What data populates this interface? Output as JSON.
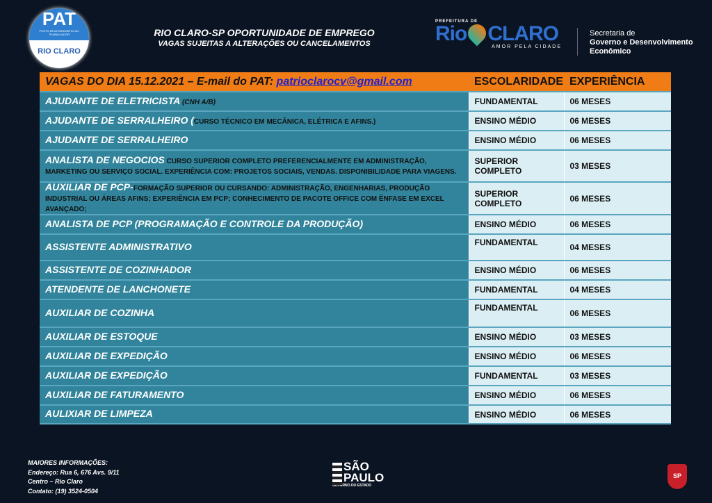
{
  "header": {
    "pat_logo": {
      "title": "PAT",
      "subtitle": "POSTO DE ATENDIMENTO AO TRABALHADOR",
      "city": "RIO CLARO"
    },
    "title": "RIO CLARO-SP OPORTUNIDADE DE EMPREGO",
    "subtitle": "VAGAS SUJEITAS A ALTERAÇÕES OU CANCELAMENTOS",
    "city_logo": {
      "prefix": "PREFEITURA DE",
      "name_left": "Rio",
      "name_right": "CLARO",
      "slogan": "AMOR PELA CIDADE"
    },
    "secretaria": {
      "line1": "Secretaria de",
      "line2": "Governo e Desenvolvimento",
      "line3": "Econômico"
    }
  },
  "table": {
    "title_prefix": "VAGAS DO DIA 15.12.2021 – E-mail do PAT: ",
    "email": "patrioclarocv@gmail.com",
    "col_escolaridade": "ESCOLARIDADE",
    "col_experiencia": "EXPERIÊNCIA",
    "rows": [
      {
        "cargo": "AJUDANTE DE ELETRICISTA",
        "detalhe": " (CNH A/B)",
        "escolaridade": "FUNDAMENTAL",
        "experiencia": "06 MESES"
      },
      {
        "cargo": "AJUDANTE DE SERRALHEIRO (",
        "detalhe": "CURSO TÉCNICO EM MECÂNICA, ELÉTRICA E AFINS.)",
        "escolaridade": "ENSINO MÉDIO",
        "experiencia": "06 MESES"
      },
      {
        "cargo": "AJUDANTE DE SERRALHEIRO",
        "detalhe": "",
        "escolaridade": "ENSINO MÉDIO",
        "experiencia": "06 MESES"
      },
      {
        "cargo": "ANALISTA DE NEGOCIOS",
        "detalhe": " CURSO SUPERIOR COMPLETO PREFERENCIALMENTE EM ADMINISTRAÇÃO, MARKETING OU SERVIÇO SOCIAL. EXPERIÊNCIA COM: PROJETOS SOCIAIS, VENDAS. DISPONIBILIDADE PARA VIAGENS.",
        "escolaridade": "SUPERIOR COMPLETO",
        "experiencia": "03 MESES"
      },
      {
        "cargo": "AUXILIAR DE PCP-",
        "detalhe": "FORMAÇÃO SUPERIOR OU CURSANDO: ADMINISTRAÇÃO, ENGENHARIAS, PRODUÇÃO INDUSTRIAL OU ÁREAS AFINS; EXPERIÊNCIA EM PCP; CONHECIMENTO DE PACOTE OFFICE COM ÊNFASE EM EXCEL AVANÇADO;",
        "escolaridade": "SUPERIOR COMPLETO",
        "experiencia": "06 MESES"
      },
      {
        "cargo": "ANALISTA DE PCP (PROGRAMAÇÃO E CONTROLE DA PRODUÇÃO)",
        "detalhe": "",
        "escolaridade": "ENSINO MÉDIO",
        "experiencia": "06 MESES"
      },
      {
        "cargo": "ASSISTENTE ADMINISTRATIVO",
        "detalhe": "",
        "escolaridade": "FUNDAMENTAL",
        "experiencia": "04 MESES"
      },
      {
        "cargo": "ASSISTENTE DE COZINHADOR",
        "detalhe": "",
        "escolaridade": "ENSINO MÉDIO",
        "experiencia": "06 MESES"
      },
      {
        "cargo": "ATENDENTE DE LANCHONETE",
        "detalhe": "",
        "escolaridade": "FUNDAMENTAL",
        "experiencia": "04 MESES"
      },
      {
        "cargo": "AUXILIAR DE COZINHA",
        "detalhe": "",
        "escolaridade": "FUNDAMENTAL",
        "experiencia": "06 MESES"
      },
      {
        "cargo": "AUXILIAR DE ESTOQUE",
        "detalhe": "",
        "escolaridade": "ENSINO MÉDIO",
        "experiencia": "03 MESES"
      },
      {
        "cargo": "AUXILIAR DE EXPEDIÇÃO",
        "detalhe": "",
        "escolaridade": "ENSINO MÉDIO",
        "experiencia": "06 MESES"
      },
      {
        "cargo": "AUXILIAR DE EXPEDIÇÃO",
        "detalhe": "",
        "escolaridade": "FUNDAMENTAL",
        "experiencia": "03 MESES"
      },
      {
        "cargo": "AUXILIAR DE FATURAMENTO",
        "detalhe": "",
        "escolaridade": "ENSINO MÉDIO",
        "experiencia": "06 MESES"
      },
      {
        "cargo": "AULIXIAR DE LIMPEZA",
        "detalhe": "",
        "escolaridade": "ENSINO MÉDIO",
        "experiencia": "06 MESES"
      }
    ]
  },
  "footer": {
    "info_title": "MAIORES INFORMAÇÕES:",
    "endereco": "Endereço: Rua 6, 676 Avs. 9/11",
    "bairro": "Centro – Rio Claro",
    "contato": "Contato: (19) 3524-0504",
    "sp_logo": {
      "line1": "SÃO",
      "line2": "PAULO",
      "line3": "GOVERNO DO ESTADO"
    },
    "brasao": "SP"
  },
  "colors": {
    "background": "#0b1422",
    "header_orange": "#f07c16",
    "cargo_teal": "#31849b",
    "cell_light": "#daeef3"
  }
}
